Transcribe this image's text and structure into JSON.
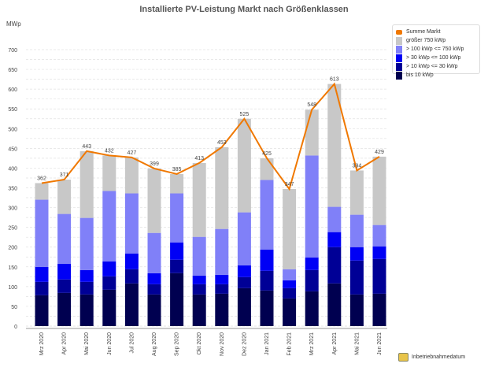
{
  "chart_data": {
    "type": "stacked-bar+line",
    "title": "Installierte PV-Leistung Markt nach Größenklassen",
    "ylabel": "MWp",
    "xlabel": "Inbetriebnahmedatum",
    "ylim": [
      0,
      700
    ],
    "yticks": [
      0,
      50,
      100,
      150,
      200,
      250,
      300,
      350,
      400,
      450,
      500,
      550,
      600,
      650,
      700
    ],
    "grid": true,
    "legend_position": "top-right",
    "categories": [
      "Mrz 2020",
      "Apr 2020",
      "Mai 2020",
      "Jun 2020",
      "Jul 2020",
      "Aug 2020",
      "Sep 2020",
      "Okt 2020",
      "Nov 2020",
      "Dez 2020",
      "Jan 2021",
      "Feb 2021",
      "Mrz 2021",
      "Apr 2021",
      "Mai 2021",
      "Jun 2021"
    ],
    "series": [
      {
        "name": "bis 10 kWp",
        "color": "#000050",
        "values": [
          78,
          84,
          80,
          92,
          108,
          80,
          134,
          80,
          82,
          96,
          90,
          70,
          88,
          108,
          80,
          82
        ]
      },
      {
        "name": "> 10 kWp <= 30 kWp",
        "color": "#000096",
        "values": [
          34,
          34,
          32,
          34,
          36,
          26,
          34,
          26,
          24,
          28,
          50,
          26,
          54,
          92,
          86,
          88
        ]
      },
      {
        "name": "> 30 kWp <= 100 kWp",
        "color": "#0000f5",
        "values": [
          38,
          40,
          30,
          38,
          40,
          28,
          44,
          22,
          24,
          30,
          54,
          20,
          32,
          38,
          34,
          32
        ]
      },
      {
        "name": "> 100 kWp <= 750 kWp",
        "color": "#8080f8",
        "values": [
          170,
          126,
          132,
          178,
          152,
          102,
          124,
          98,
          116,
          134,
          176,
          28,
          258,
          64,
          82,
          54
        ]
      },
      {
        "name": "größer 750 kWp",
        "color": "#c8c8c8",
        "values": [
          42,
          87,
          169,
          90,
          91,
          163,
          49,
          187,
          207,
          237,
          55,
          203,
          116,
          311,
          112,
          173
        ]
      }
    ],
    "line": {
      "name": "Summe Markt",
      "color": "#f07800",
      "values": [
        362,
        371,
        443,
        432,
        427,
        399,
        385,
        413,
        453,
        525,
        425,
        347,
        548,
        613,
        394,
        429
      ]
    }
  }
}
